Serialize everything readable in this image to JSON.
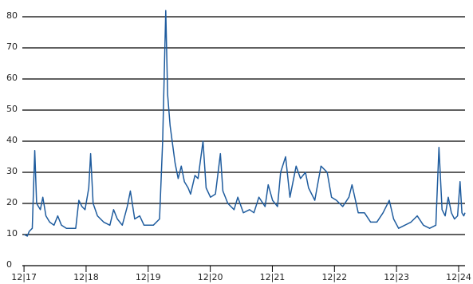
{
  "chart_data": {
    "type": "line",
    "x": [
      2017.92,
      2017.97,
      2018.0,
      2018.05,
      2018.09,
      2018.12,
      2018.18,
      2018.22,
      2018.27,
      2018.33,
      2018.4,
      2018.46,
      2018.52,
      2018.6,
      2018.68,
      2018.75,
      2018.8,
      2018.85,
      2018.9,
      2018.96,
      2018.99,
      2019.03,
      2019.1,
      2019.2,
      2019.3,
      2019.36,
      2019.42,
      2019.5,
      2019.58,
      2019.63,
      2019.7,
      2019.78,
      2019.85,
      2019.92,
      2020.0,
      2020.1,
      2020.15,
      2020.2,
      2020.23,
      2020.27,
      2020.35,
      2020.4,
      2020.45,
      2020.5,
      2020.56,
      2020.6,
      2020.67,
      2020.72,
      2020.8,
      2020.85,
      2020.92,
      2021.0,
      2021.08,
      2021.12,
      2021.2,
      2021.3,
      2021.36,
      2021.45,
      2021.55,
      2021.62,
      2021.7,
      2021.8,
      2021.85,
      2021.92,
      2022.0,
      2022.05,
      2022.13,
      2022.2,
      2022.3,
      2022.37,
      2022.45,
      2022.5,
      2022.6,
      2022.7,
      2022.8,
      2022.87,
      2022.95,
      2023.05,
      2023.15,
      2023.2,
      2023.3,
      2023.4,
      2023.5,
      2023.6,
      2023.7,
      2023.8,
      2023.87,
      2023.95,
      2024.05,
      2024.15,
      2024.25,
      2024.35,
      2024.45,
      2024.55,
      2024.6,
      2024.65,
      2024.7,
      2024.75,
      2024.8,
      2024.85,
      2024.9,
      2024.94,
      2024.97,
      2025.0,
      2025.02
    ],
    "series": [
      {
        "color": "#1f5c9e",
        "values": [
          10,
          9.5,
          11,
          12,
          37,
          20,
          18,
          22,
          16,
          14,
          13,
          16,
          13,
          12,
          12,
          12,
          21,
          19,
          18,
          25,
          36,
          20,
          16,
          14,
          13,
          18,
          15,
          13,
          19,
          24,
          15,
          16,
          13,
          13,
          13,
          15,
          40,
          82,
          55,
          45,
          33,
          28,
          32,
          27,
          25,
          23,
          29,
          28,
          40,
          25,
          22,
          23,
          36,
          24,
          20,
          18,
          22,
          17,
          18,
          17,
          22,
          19,
          26,
          21,
          19,
          30,
          35,
          22,
          32,
          28,
          30,
          25,
          21,
          32,
          30,
          22,
          21,
          19,
          22,
          26,
          17,
          17,
          14,
          14,
          17,
          21,
          15,
          12,
          13,
          14,
          16,
          13,
          12,
          13,
          38,
          18,
          16,
          22,
          17,
          15,
          16,
          27,
          17,
          16,
          17
        ]
      }
    ],
    "xlim": [
      2017.89,
      2025.02
    ],
    "xticks": [
      {
        "value": 2017.917,
        "label": "12|17"
      },
      {
        "value": 2018.917,
        "label": "12|18"
      },
      {
        "value": 2019.917,
        "label": "12|19"
      },
      {
        "value": 2020.917,
        "label": "12|20"
      },
      {
        "value": 2021.917,
        "label": "12|21"
      },
      {
        "value": 2022.917,
        "label": "12|22"
      },
      {
        "value": 2023.917,
        "label": "12|23"
      },
      {
        "value": 2024.917,
        "label": "12|24"
      }
    ],
    "ylim": [
      0,
      80
    ],
    "yticks": [
      0,
      10,
      20,
      30,
      40,
      50,
      60,
      70,
      80
    ],
    "grid": true
  }
}
